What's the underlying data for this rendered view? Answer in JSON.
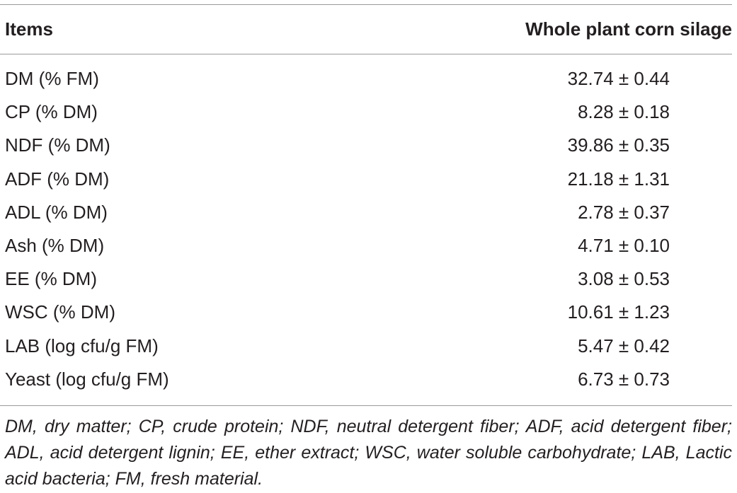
{
  "table": {
    "header": {
      "items_label": "Items",
      "value_label": "Whole plant corn silage"
    },
    "rows": [
      {
        "item": "DM (% FM)",
        "value": "32.74 ± 0.44"
      },
      {
        "item": "CP (% DM)",
        "value": "8.28 ± 0.18"
      },
      {
        "item": "NDF (% DM)",
        "value": "39.86 ± 0.35"
      },
      {
        "item": "ADF (% DM)",
        "value": "21.18 ± 1.31"
      },
      {
        "item": "ADL (% DM)",
        "value": "2.78 ± 0.37"
      },
      {
        "item": "Ash (% DM)",
        "value": "4.71 ± 0.10"
      },
      {
        "item": "EE (% DM)",
        "value": "3.08 ± 0.53"
      },
      {
        "item": "WSC (% DM)",
        "value": "10.61 ± 1.23"
      },
      {
        "item": "LAB (log cfu/g FM)",
        "value": "5.47 ± 0.42"
      },
      {
        "item": "Yeast (log cfu/g FM)",
        "value": "6.73 ± 0.73"
      }
    ],
    "footnote": "DM, dry matter; CP, crude protein; NDF, neutral detergent fiber; ADF, acid detergent fiber; ADL, acid detergent lignin; EE, ether extract; WSC, water soluble carbohydrate; LAB, Lactic acid bacteria; FM, fresh material."
  }
}
